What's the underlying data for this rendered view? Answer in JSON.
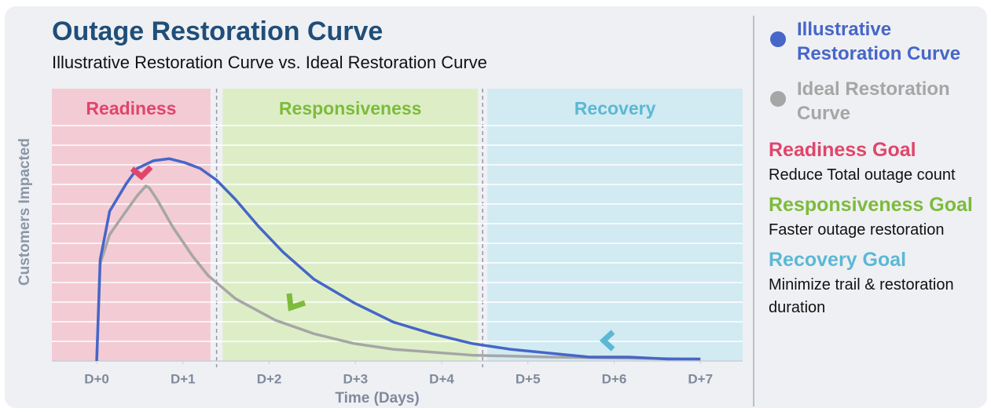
{
  "chart_data": {
    "type": "line",
    "title": "Outage Restoration Curve",
    "subtitle": "Illustrative Restoration Curve vs. Ideal Restoration Curve",
    "x_label": "Time (Days)",
    "y_label": "Customers Impacted",
    "xlim": [
      -0.52,
      7.49
    ],
    "ylim": [
      0,
      14
    ],
    "xticks": [
      {
        "value": 0,
        "label": "D+0"
      },
      {
        "value": 1,
        "label": "D+1"
      },
      {
        "value": 2,
        "label": "D+2"
      },
      {
        "value": 3,
        "label": "D+3"
      },
      {
        "value": 4,
        "label": "D+4"
      },
      {
        "value": 5,
        "label": "D+5"
      },
      {
        "value": 6,
        "label": "D+6"
      },
      {
        "value": 7,
        "label": "D+7"
      }
    ],
    "grid": true,
    "phases": [
      {
        "label": "Readiness",
        "start": -0.52,
        "end": 1.32,
        "color": "#e0456b",
        "background": "#f3cbd5"
      },
      {
        "label": "Responsiveness",
        "start": 1.46,
        "end": 4.42,
        "color": "#7dbb3c",
        "background": "#ddeec6"
      },
      {
        "label": "Recovery",
        "start": 4.53,
        "end": 7.49,
        "color": "#5bb8d4",
        "background": "#d2eaf2"
      }
    ],
    "series": [
      {
        "name": "Illustrative Restoration Curve",
        "color": "#4666c8",
        "x": [
          0,
          0.04,
          0.15,
          0.34,
          0.47,
          0.66,
          0.84,
          1.02,
          1.2,
          1.39,
          1.61,
          1.88,
          2.16,
          2.52,
          2.98,
          3.44,
          3.89,
          4.35,
          4.8,
          5.26,
          5.71,
          6.17,
          6.62,
          7.0
        ],
        "values": [
          0,
          5.2,
          7.7,
          9.1,
          9.9,
          10.3,
          10.4,
          10.2,
          9.9,
          9.3,
          8.3,
          6.9,
          5.6,
          4.2,
          3.0,
          2.0,
          1.4,
          0.9,
          0.6,
          0.4,
          0.2,
          0.2,
          0.1,
          0.1
        ]
      },
      {
        "name": "Ideal Restoration Curve",
        "color": "#a6a6a6",
        "x": [
          0,
          0.04,
          0.15,
          0.34,
          0.47,
          0.57,
          0.61,
          0.7,
          0.88,
          1.11,
          1.29,
          1.61,
          2.07,
          2.52,
          2.98,
          3.44,
          4.35,
          5.26,
          7.0
        ],
        "values": [
          0,
          5.0,
          6.5,
          7.7,
          8.5,
          9.0,
          8.9,
          8.3,
          6.9,
          5.4,
          4.4,
          3.2,
          2.1,
          1.4,
          0.9,
          0.6,
          0.3,
          0.2,
          0.1
        ]
      }
    ],
    "goals": [
      {
        "title": "Readiness Goal",
        "text": "Reduce Total outage count",
        "color": "#e0456b"
      },
      {
        "title": "Responsiveness Goal",
        "text": "Faster outage restoration",
        "color": "#7dbb3c"
      },
      {
        "title": "Recovery Goal",
        "text": "Minimize trail & restoration duration",
        "color": "#5bb8d4"
      }
    ]
  }
}
